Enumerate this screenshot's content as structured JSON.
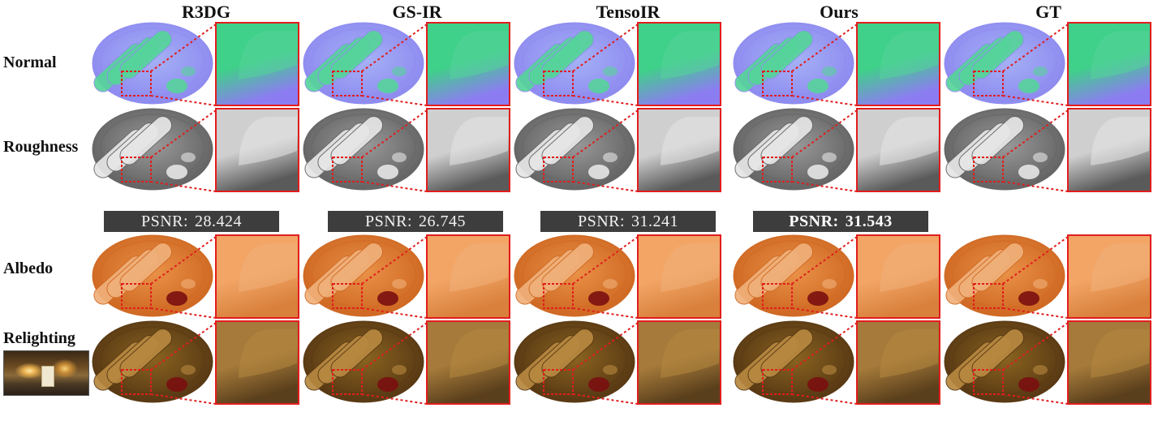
{
  "methods": [
    {
      "name": "R3DG",
      "psnr": "28.424",
      "best": false
    },
    {
      "name": "GS-IR",
      "psnr": "26.745",
      "best": false
    },
    {
      "name": "TensoIR",
      "psnr": "31.241",
      "best": false
    },
    {
      "name": "Ours",
      "psnr": "31.543",
      "best": true
    },
    {
      "name": "GT",
      "psnr": null,
      "best": false
    }
  ],
  "rows": [
    "Normal",
    "Roughness",
    "Albedo",
    "Relighting"
  ],
  "psnr_label": "PSNR:",
  "zoom_box_color": "#e11d1d",
  "row_styles": {
    "normal": {
      "plate_outer": "#8f8cf0",
      "plate_inner": "#a6b2f6",
      "food": "#56d49a",
      "zoom_top": "#3fd089",
      "zoom_bottom": "#8c7cf2"
    },
    "roughness": {
      "plate_outer": "#666666",
      "plate_inner": "#9a9a9a",
      "food": "#e6e6e6",
      "zoom_top": "#cfcfcf",
      "zoom_bottom": "#5a5a5a"
    },
    "albedo": {
      "plate_outer": "#d06a24",
      "plate_inner": "#ea9248",
      "food": "#f0b07a",
      "zoom_top": "#f2a565",
      "zoom_bottom": "#d9803c"
    },
    "relighting": {
      "plate_outer": "#5a3a14",
      "plate_inner": "#8a6420",
      "food": "#b78840",
      "zoom_top": "#a57a3a",
      "zoom_bottom": "#5a3f1c"
    }
  }
}
